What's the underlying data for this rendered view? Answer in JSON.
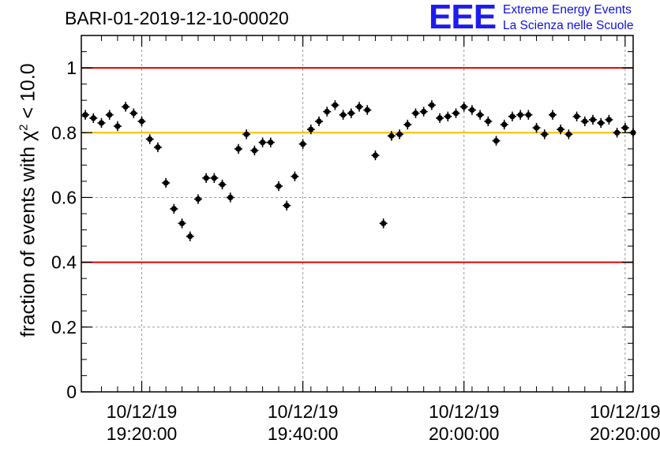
{
  "title": "BARI-01-2019-12-10-00020",
  "logo": {
    "mark": "EEE",
    "line1": "Extreme Energy Events",
    "line2": "La Scienza nelle Scuole"
  },
  "chart_data": {
    "type": "scatter",
    "title": "BARI-01-2019-12-10-00020",
    "ylabel_prefix": "fraction of events with ",
    "ylabel_chi": "χ",
    "ylabel_sup": "2",
    "ylabel_suffix": " < 10.0",
    "xlabel": "",
    "x_unit": "minutes",
    "xlim": [
      10.3,
      37.7
    ],
    "ylim": [
      0,
      1.1
    ],
    "y_ticks": [
      0,
      0.2,
      0.4,
      0.6,
      0.8,
      1
    ],
    "y_tick_labels": [
      "0",
      "0.2",
      "0.4",
      "0.6",
      "0.8",
      "1"
    ],
    "x_ticks": [
      {
        "x": 13.3,
        "date": "10/12/19",
        "time": "19:20:00"
      },
      {
        "x": 21.3,
        "date": "10/12/19",
        "time": "19:40:00"
      },
      {
        "x": 29.3,
        "date": "10/12/19",
        "time": "20:00:00"
      },
      {
        "x": 37.3,
        "date": "10/12/19",
        "time": "20:20:00"
      }
    ],
    "grid": true,
    "reference_lines": [
      {
        "y": 1.0,
        "color": "#e00000"
      },
      {
        "y": 0.8,
        "color": "#f5c000"
      },
      {
        "y": 0.4,
        "color": "#e00000"
      }
    ],
    "points": {
      "x": [
        10.5,
        10.9,
        11.3,
        11.7,
        12.1,
        12.5,
        12.9,
        13.3,
        13.7,
        14.1,
        14.5,
        14.9,
        15.3,
        15.7,
        16.1,
        16.5,
        16.9,
        17.3,
        17.7,
        18.1,
        18.5,
        18.9,
        19.3,
        19.7,
        20.1,
        20.5,
        20.9,
        21.3,
        21.7,
        22.1,
        22.5,
        22.9,
        23.3,
        23.7,
        24.1,
        24.5,
        24.9,
        25.3,
        25.7,
        26.1,
        26.5,
        26.9,
        27.3,
        27.7,
        28.1,
        28.5,
        28.9,
        29.3,
        29.7,
        30.1,
        30.5,
        30.9,
        31.3,
        31.7,
        32.1,
        32.5,
        32.9,
        33.3,
        33.7,
        34.1,
        34.5,
        34.9,
        35.3,
        35.7,
        36.1,
        36.5,
        36.9,
        37.3,
        37.7
      ],
      "y": [
        0.855,
        0.845,
        0.83,
        0.855,
        0.82,
        0.88,
        0.86,
        0.835,
        0.78,
        0.755,
        0.645,
        0.565,
        0.52,
        0.48,
        0.595,
        0.66,
        0.66,
        0.64,
        0.6,
        0.75,
        0.795,
        0.745,
        0.77,
        0.77,
        0.635,
        0.575,
        0.665,
        0.765,
        0.81,
        0.835,
        0.865,
        0.885,
        0.855,
        0.86,
        0.88,
        0.87,
        0.73,
        0.52,
        0.79,
        0.795,
        0.825,
        0.86,
        0.865,
        0.885,
        0.845,
        0.85,
        0.86,
        0.88,
        0.87,
        0.855,
        0.835,
        0.775,
        0.825,
        0.85,
        0.855,
        0.855,
        0.815,
        0.795,
        0.855,
        0.81,
        0.795,
        0.85,
        0.835,
        0.84,
        0.83,
        0.84,
        0.8,
        0.815,
        0.8
      ],
      "err": 0.015
    }
  }
}
